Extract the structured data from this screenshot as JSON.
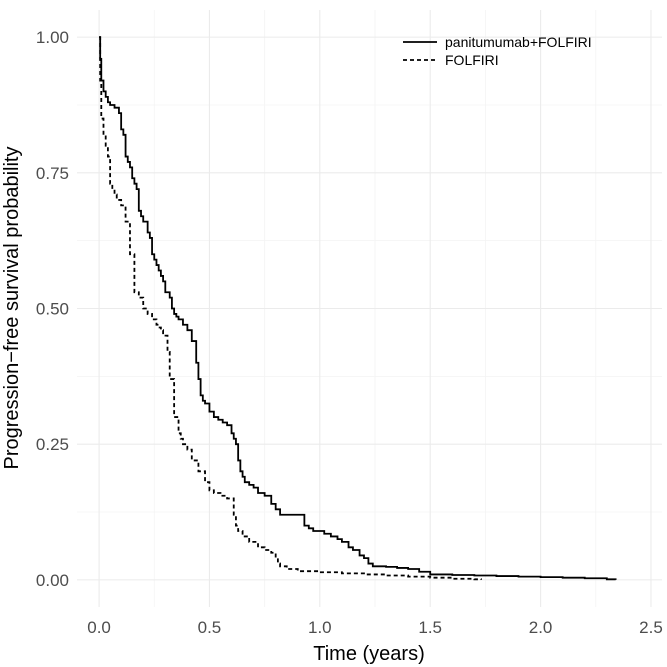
{
  "chart_data": {
    "type": "line",
    "title": "",
    "xlabel": "Time (years)",
    "ylabel": "Progression−free survival probability",
    "xlim": [
      -0.1,
      2.55
    ],
    "ylim": [
      -0.05,
      1.05
    ],
    "x_ticks": [
      0.0,
      0.5,
      1.0,
      1.5,
      2.0,
      2.5
    ],
    "x_tick_labels": [
      "0.0",
      "0.5",
      "1.0",
      "1.5",
      "2.0",
      "2.5"
    ],
    "y_ticks": [
      0.0,
      0.25,
      0.5,
      0.75,
      1.0
    ],
    "y_tick_labels": [
      "0.00",
      "0.25",
      "0.50",
      "0.75",
      "1.00"
    ],
    "grid": true,
    "legend_position": "top-right",
    "series": [
      {
        "name": "panitumumab+FOLFIRI",
        "line_style": "solid",
        "color": "#000000",
        "x": [
          0.0,
          0.005,
          0.01,
          0.02,
          0.03,
          0.04,
          0.05,
          0.07,
          0.09,
          0.1,
          0.11,
          0.12,
          0.13,
          0.14,
          0.15,
          0.16,
          0.17,
          0.18,
          0.19,
          0.2,
          0.22,
          0.23,
          0.24,
          0.25,
          0.26,
          0.27,
          0.28,
          0.29,
          0.3,
          0.32,
          0.33,
          0.34,
          0.35,
          0.36,
          0.38,
          0.4,
          0.42,
          0.44,
          0.45,
          0.46,
          0.47,
          0.48,
          0.5,
          0.52,
          0.54,
          0.56,
          0.58,
          0.6,
          0.61,
          0.62,
          0.63,
          0.64,
          0.65,
          0.66,
          0.68,
          0.7,
          0.72,
          0.75,
          0.78,
          0.8,
          0.82,
          0.85,
          0.9,
          0.93,
          0.95,
          0.97,
          0.99,
          1.0,
          1.02,
          1.05,
          1.08,
          1.1,
          1.13,
          1.15,
          1.18,
          1.2,
          1.22,
          1.24,
          1.25,
          1.3,
          1.35,
          1.4,
          1.45,
          1.5,
          1.52,
          1.6,
          1.7,
          1.8,
          1.9,
          2.0,
          2.1,
          2.2,
          2.3,
          2.34
        ],
        "y": [
          1.0,
          0.96,
          0.92,
          0.9,
          0.89,
          0.88,
          0.875,
          0.87,
          0.86,
          0.83,
          0.82,
          0.78,
          0.77,
          0.76,
          0.74,
          0.73,
          0.72,
          0.68,
          0.67,
          0.66,
          0.64,
          0.63,
          0.6,
          0.59,
          0.58,
          0.57,
          0.56,
          0.55,
          0.53,
          0.52,
          0.5,
          0.49,
          0.485,
          0.48,
          0.47,
          0.46,
          0.44,
          0.4,
          0.37,
          0.34,
          0.33,
          0.325,
          0.31,
          0.3,
          0.295,
          0.29,
          0.285,
          0.27,
          0.26,
          0.25,
          0.22,
          0.2,
          0.19,
          0.18,
          0.175,
          0.17,
          0.16,
          0.155,
          0.14,
          0.13,
          0.12,
          0.12,
          0.12,
          0.1,
          0.095,
          0.09,
          0.09,
          0.09,
          0.085,
          0.08,
          0.075,
          0.07,
          0.06,
          0.055,
          0.045,
          0.04,
          0.03,
          0.025,
          0.025,
          0.024,
          0.022,
          0.02,
          0.015,
          0.01,
          0.01,
          0.009,
          0.008,
          0.007,
          0.006,
          0.005,
          0.004,
          0.003,
          0.001,
          0.0
        ]
      },
      {
        "name": "FOLFIRI",
        "line_style": "dashed",
        "color": "#000000",
        "x": [
          0.0,
          0.005,
          0.01,
          0.02,
          0.03,
          0.04,
          0.05,
          0.06,
          0.07,
          0.08,
          0.1,
          0.12,
          0.14,
          0.16,
          0.18,
          0.2,
          0.22,
          0.24,
          0.26,
          0.27,
          0.28,
          0.29,
          0.3,
          0.31,
          0.32,
          0.34,
          0.36,
          0.37,
          0.38,
          0.4,
          0.42,
          0.45,
          0.48,
          0.5,
          0.52,
          0.55,
          0.58,
          0.6,
          0.61,
          0.62,
          0.63,
          0.65,
          0.68,
          0.72,
          0.75,
          0.78,
          0.8,
          0.81,
          0.82,
          0.85,
          0.9,
          1.0,
          1.1,
          1.2,
          1.3,
          1.4,
          1.5,
          1.6,
          1.7,
          1.73
        ],
        "y": [
          1.0,
          0.92,
          0.85,
          0.82,
          0.8,
          0.78,
          0.73,
          0.72,
          0.71,
          0.7,
          0.69,
          0.66,
          0.6,
          0.53,
          0.52,
          0.5,
          0.49,
          0.48,
          0.47,
          0.465,
          0.46,
          0.45,
          0.45,
          0.42,
          0.37,
          0.3,
          0.27,
          0.26,
          0.25,
          0.24,
          0.22,
          0.2,
          0.18,
          0.165,
          0.16,
          0.155,
          0.15,
          0.15,
          0.12,
          0.1,
          0.09,
          0.08,
          0.07,
          0.06,
          0.055,
          0.05,
          0.04,
          0.03,
          0.025,
          0.02,
          0.016,
          0.014,
          0.012,
          0.01,
          0.008,
          0.006,
          0.004,
          0.002,
          0.001,
          0.0
        ]
      }
    ]
  }
}
